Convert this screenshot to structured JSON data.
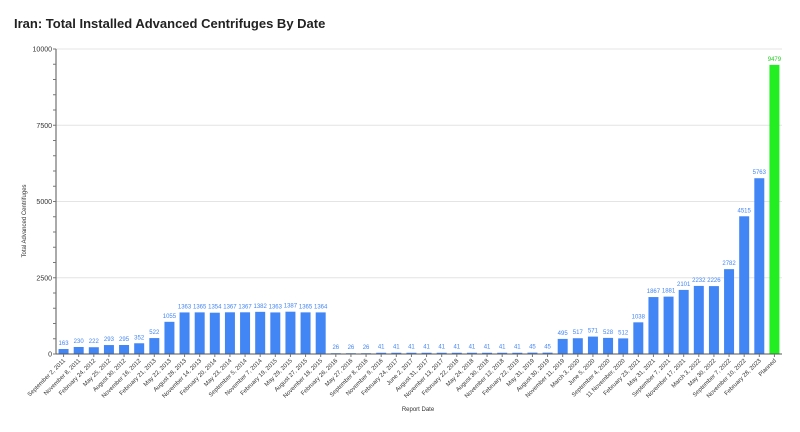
{
  "title": "Iran: Total Installed Advanced Centrifuges By Date",
  "chart_data": {
    "type": "bar",
    "title": "Iran: Total Installed Advanced Centrifuges By Date",
    "xlabel": "Report Date",
    "ylabel": "Total Advanced Centrifuges",
    "ylim": [
      0,
      10000
    ],
    "yticks": [
      0,
      2500,
      5000,
      7500,
      10000
    ],
    "grid": true,
    "colors": {
      "bar": "#4285f4",
      "planned": "#22ee22",
      "label": "#4285f4",
      "planned_label": "#22cc22"
    },
    "categories": [
      "September 2, 2011",
      "November 8, 2011",
      "February 24, 2012",
      "May 25, 2012",
      "August 30, 2012",
      "November 16, 2012",
      "February 21, 2013",
      "May 22, 2013",
      "August 28, 2013",
      "November 14, 2013",
      "February 20, 2014",
      "May 23, 2014",
      "September 5, 2014",
      "November 7, 2014",
      "February 19, 2015",
      "May 29, 2015",
      "August 27, 2015",
      "November 18, 2015",
      "February 26, 2016",
      "May 27, 2016",
      "September 8, 2016",
      "November 9, 2016",
      "February 24, 2017",
      "June 2, 2017",
      "August 31, 2017",
      "November 13, 2017",
      "February 22, 2018",
      "May 24, 2018",
      "August 30, 2018",
      "November 12, 2018",
      "February 22, 2019",
      "May 31, 2019",
      "August 30, 2019",
      "November 11, 2019",
      "March 3, 2020",
      "June 5, 2020",
      "September 4, 2020",
      "11 November, 2020",
      "February 23, 2021",
      "May 31, 2021",
      "September 7, 2021",
      "November 17, 2021",
      "March 3, 2022",
      "May 30, 2022",
      "September 7, 2022",
      "November 10, 2022",
      "February 28, 2023",
      "Planned"
    ],
    "values": [
      163,
      230,
      222,
      293,
      295,
      352,
      522,
      1055,
      1363,
      1365,
      1354,
      1367,
      1367,
      1382,
      1363,
      1387,
      1365,
      1364,
      26,
      26,
      26,
      41,
      41,
      41,
      41,
      41,
      41,
      41,
      41,
      41,
      41,
      45,
      45,
      495,
      517,
      571,
      528,
      512,
      1038,
      1867,
      1881,
      2101,
      2232,
      2226,
      2782,
      4515,
      5763,
      9479
    ],
    "data_labels": [
      "163",
      "230",
      "222",
      "293",
      "295",
      "352",
      "522",
      "1055",
      "1363",
      "1365",
      "1354",
      "1367",
      "1367",
      "1382",
      "1363",
      "1387",
      "1365",
      "1364",
      "26",
      "26",
      "26",
      "41",
      "41",
      "41",
      "41",
      "41",
      "41",
      "41",
      "41",
      "41",
      "41",
      "45",
      "45",
      "495",
      "517",
      "571",
      "528",
      "512",
      "1038",
      "1867",
      "1881",
      "2101",
      "2232",
      "2226",
      "2782",
      "4515",
      "5763",
      "9479"
    ]
  }
}
